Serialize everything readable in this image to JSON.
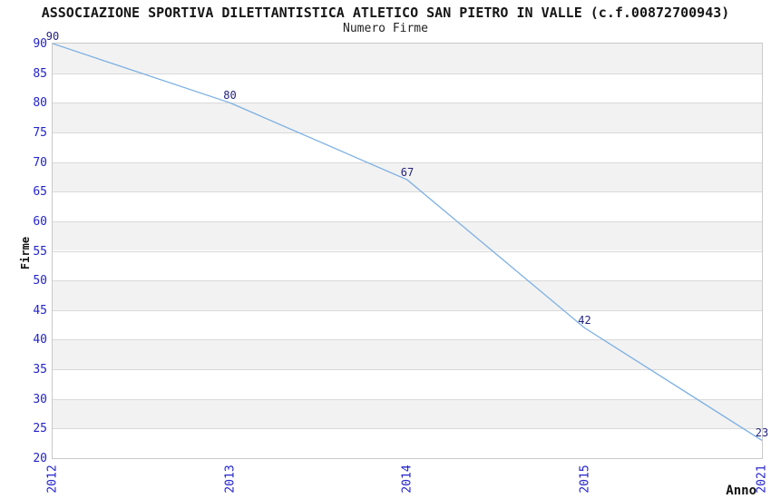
{
  "chart_data": {
    "type": "line",
    "title": "ASSOCIAZIONE SPORTIVA DILETTANTISTICA ATLETICO SAN PIETRO IN VALLE (c.f.00872700943)",
    "subtitle": "Numero Firme",
    "xlabel": "Anno",
    "ylabel": "Firme",
    "categories": [
      "2012",
      "2013",
      "2014",
      "2015",
      "2021"
    ],
    "values": [
      90,
      80,
      67,
      42,
      23
    ],
    "ylim": [
      20,
      90
    ],
    "ytick_step": 5,
    "grid": true,
    "legend": "none",
    "colors": {
      "line": "#7cb0e2",
      "tick_label": "#2323cc",
      "value_label": "#232380",
      "band_gray": "#f2f2f2",
      "band_white": "#ffffff",
      "gridline": "#d9d9d9",
      "plot_border": "#c9c9c9",
      "title_text": "#161616"
    }
  }
}
